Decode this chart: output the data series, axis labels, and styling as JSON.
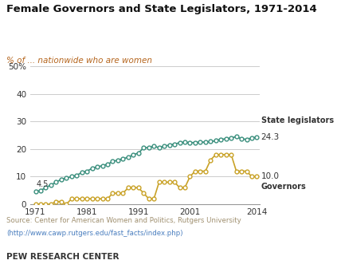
{
  "title": "Female Governors and State Legislators, 1971-2014",
  "subtitle": "% of ... nationwide who are women",
  "source_text": "Source: Center for American Women and Politics, Rutgers University",
  "source_url": "(http://www.cawp.rutgers.edu/fast_facts/index.php)",
  "footer": "PEW RESEARCH CENTER",
  "state_leg_color": "#3a8f7d",
  "governors_color": "#c9a227",
  "background_color": "#ffffff",
  "chart_bg_color": "#f9f7f2",
  "state_leg_label": "State legislators",
  "governors_label": "Governors",
  "state_leg_end_value": "24.3",
  "governors_end_value": "10.0",
  "state_leg_start_value": "4.5",
  "ylim": [
    0,
    50
  ],
  "yticks": [
    0,
    10,
    20,
    30,
    40,
    50
  ],
  "ytick_labels": [
    "0",
    "10",
    "20",
    "30",
    "40",
    "50%"
  ],
  "xticks": [
    1971,
    1981,
    1991,
    2001,
    2014
  ],
  "state_legislators": {
    "years": [
      1971,
      1972,
      1973,
      1974,
      1975,
      1976,
      1977,
      1978,
      1979,
      1980,
      1981,
      1982,
      1983,
      1984,
      1985,
      1986,
      1987,
      1988,
      1989,
      1990,
      1991,
      1992,
      1993,
      1994,
      1995,
      1996,
      1997,
      1998,
      1999,
      2000,
      2001,
      2002,
      2003,
      2004,
      2005,
      2006,
      2007,
      2008,
      2009,
      2010,
      2011,
      2012,
      2013,
      2014
    ],
    "values": [
      4.5,
      5.0,
      6.0,
      7.0,
      8.0,
      9.0,
      9.5,
      10.0,
      10.5,
      11.5,
      12.0,
      13.0,
      13.5,
      14.0,
      14.5,
      15.5,
      16.0,
      16.5,
      17.0,
      18.0,
      18.5,
      20.5,
      20.5,
      21.0,
      20.5,
      21.0,
      21.5,
      21.8,
      22.3,
      22.5,
      22.3,
      22.4,
      22.5,
      22.5,
      22.7,
      23.0,
      23.5,
      23.7,
      24.0,
      24.5,
      23.7,
      23.5,
      24.0,
      24.3
    ]
  },
  "governors": {
    "years": [
      1971,
      1972,
      1973,
      1974,
      1975,
      1976,
      1977,
      1978,
      1979,
      1980,
      1981,
      1982,
      1983,
      1984,
      1985,
      1986,
      1987,
      1988,
      1989,
      1990,
      1991,
      1992,
      1993,
      1994,
      1995,
      1996,
      1997,
      1998,
      1999,
      2000,
      2001,
      2002,
      2003,
      2004,
      2005,
      2006,
      2007,
      2008,
      2009,
      2010,
      2011,
      2012,
      2013,
      2014
    ],
    "values": [
      0,
      0,
      0,
      0,
      1,
      1,
      0,
      2,
      2,
      2,
      2,
      2,
      2,
      2,
      2,
      4,
      4,
      4,
      6,
      6,
      6,
      4,
      2,
      2,
      8,
      8,
      8,
      8,
      6,
      6,
      10,
      12,
      12,
      12,
      16,
      18,
      18,
      18,
      18,
      12,
      12,
      12,
      10,
      10
    ]
  }
}
